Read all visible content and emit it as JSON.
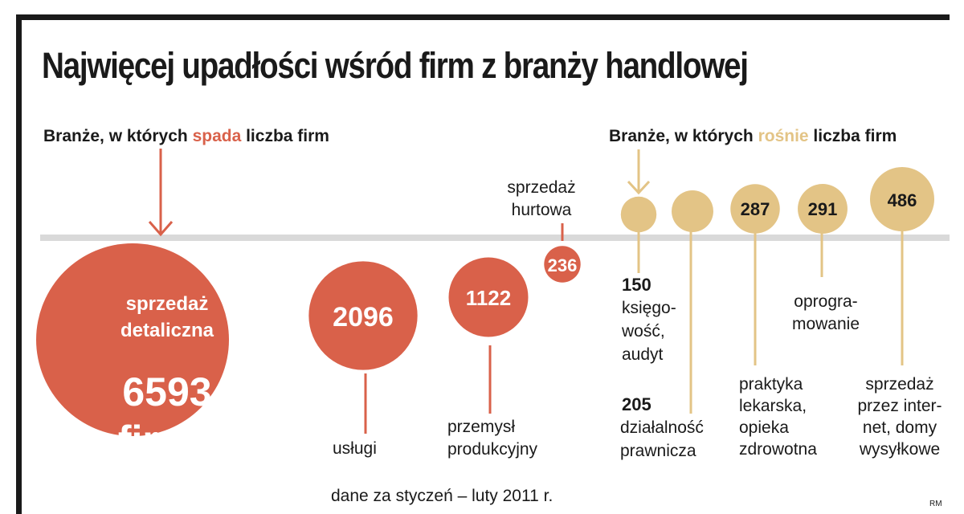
{
  "title": "Najwięcej upadłości wśród firm z branży handlowej",
  "left_heading": {
    "before": "Branże, w których ",
    "accent": "spada",
    "after": " liczba firm"
  },
  "right_heading": {
    "before": "Branże, w których ",
    "accent": "rośnie",
    "after": " liczba firm"
  },
  "footer_note": "dane za styczeń – luty 2011 r.",
  "credit": "RM",
  "colors": {
    "falling": "#d9614a",
    "rising": "#e3c486",
    "divider": "#d9d9d9",
    "text": "#1a1a1a"
  },
  "chart_data": {
    "type": "bubble",
    "title": "Najwięcej upadłości wśród firm z branży handlowej",
    "groups": [
      {
        "name": "Branże, w których spada liczba firm",
        "color": "#d9614a",
        "points": [
          {
            "category": "sprzedaż detaliczna",
            "value": 6593,
            "value_text": "6593",
            "unit_text": "firmy"
          },
          {
            "category": "usługi",
            "value": 2096,
            "value_text": "2096"
          },
          {
            "category": "przemysł produkcyjny",
            "value": 1122,
            "value_text": "1122"
          },
          {
            "category": "sprzedaż hurtowa",
            "value": 236,
            "value_text": "236"
          }
        ]
      },
      {
        "name": "Branże, w których rośnie liczba firm",
        "color": "#e3c486",
        "points": [
          {
            "category": "księgowość, audyt",
            "value": 150,
            "value_text": "150"
          },
          {
            "category": "działalność prawnicza",
            "value": 205,
            "value_text": "205"
          },
          {
            "category": "praktyka lekarska, opieka zdrowotna",
            "value": 287,
            "value_text": "287"
          },
          {
            "category": "oprogramowanie",
            "value": 291,
            "value_text": "291"
          },
          {
            "category": "sprzedaż przez internet, domy wysyłkowe",
            "value": 486,
            "value_text": "486"
          }
        ]
      }
    ]
  }
}
